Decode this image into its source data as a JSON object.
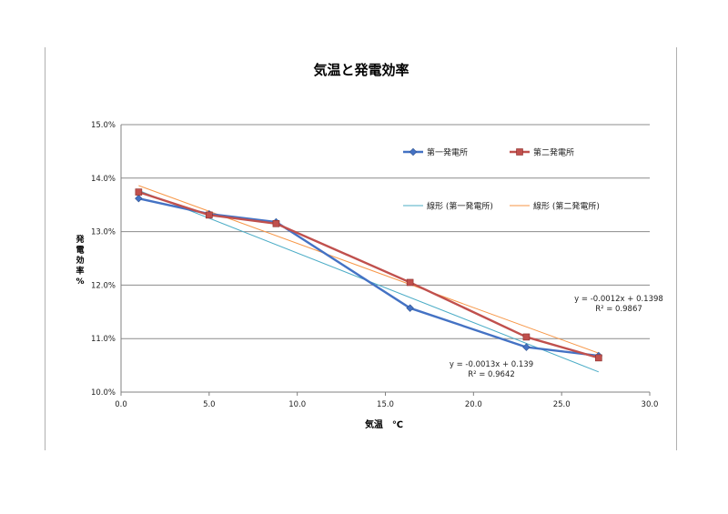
{
  "chart_data": {
    "type": "scatter",
    "title": "気温と発電効率",
    "xlabel": "気温　℃",
    "ylabel": "発電効率 %",
    "xlim": [
      0,
      30
    ],
    "ylim": [
      0.1,
      0.15
    ],
    "xticks": [
      "0.0",
      "5.0",
      "10.0",
      "15.0",
      "20.0",
      "25.0",
      "30.0"
    ],
    "yticks": [
      "10.0%",
      "11.0%",
      "12.0%",
      "13.0%",
      "14.0%",
      "15.0%"
    ],
    "grid": "horizontal",
    "legend_position": "top-right",
    "series": [
      {
        "name": "第一発電所",
        "color": "#4472c4",
        "marker": "diamond",
        "x": [
          1.0,
          5.0,
          8.8,
          16.4,
          23.0,
          27.1
        ],
        "y": [
          0.1362,
          0.1333,
          0.1318,
          0.1157,
          0.1084,
          0.1068
        ]
      },
      {
        "name": "第二発電所",
        "color": "#c0504d",
        "marker": "square",
        "x": [
          1.0,
          5.0,
          8.8,
          16.4,
          23.0,
          27.1
        ],
        "y": [
          0.1374,
          0.1331,
          0.1315,
          0.1205,
          0.1103,
          0.1064
        ]
      }
    ],
    "trendlines": [
      {
        "name": "線形 (第一発電所)",
        "color": "#4bacc6",
        "slope": -0.0013,
        "intercept": 0.139,
        "x_range": [
          1.0,
          27.1
        ],
        "equation": "y = -0.0013x + 0.139",
        "r2": "R² = 0.9642"
      },
      {
        "name": "線形 (第二発電所)",
        "color": "#f79646",
        "slope": -0.0012,
        "intercept": 0.1398,
        "x_range": [
          1.0,
          27.1
        ],
        "equation": "y = -0.0012x + 0.1398",
        "r2": "R² = 0.9867"
      }
    ]
  }
}
